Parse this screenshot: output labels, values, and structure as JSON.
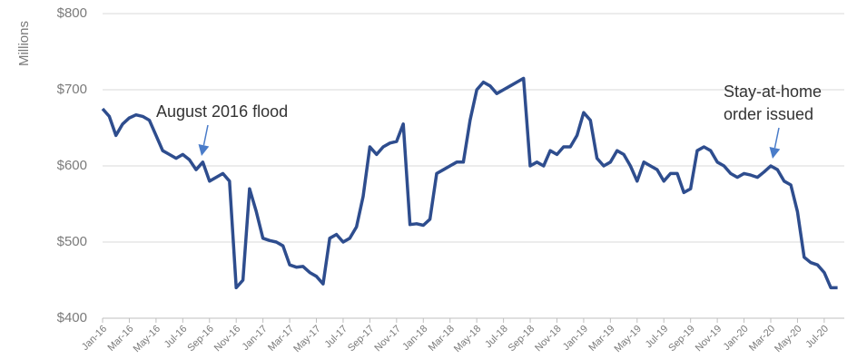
{
  "chart_data": {
    "type": "line",
    "y_label": "Millions",
    "categories": [
      "Jan-16",
      null,
      null,
      null,
      "Mar-16",
      null,
      null,
      null,
      "May-16",
      null,
      null,
      null,
      "Jul-16",
      null,
      null,
      null,
      "Sep-16",
      null,
      null,
      null,
      "Nov-16",
      null,
      null,
      null,
      "Jan-17",
      null,
      null,
      null,
      "Mar-17",
      null,
      null,
      null,
      "May-17",
      null,
      null,
      null,
      "Jul-17",
      null,
      null,
      null,
      "Sep-17",
      null,
      null,
      null,
      "Nov-17",
      null,
      null,
      null,
      "Jan-18",
      null,
      null,
      null,
      "Mar-18",
      null,
      null,
      null,
      "May-18",
      null,
      null,
      null,
      "Jul-18",
      null,
      null,
      null,
      "Sep-18",
      null,
      null,
      null,
      "Nov-18",
      null,
      null,
      null,
      "Jan-19",
      null,
      null,
      null,
      "Mar-19",
      null,
      null,
      null,
      "May-19",
      null,
      null,
      null,
      "Jul-19",
      null,
      null,
      null,
      "Sep-19",
      null,
      null,
      null,
      "Nov-19",
      null,
      null,
      null,
      "Jan-20",
      null,
      null,
      null,
      "Mar-20",
      null,
      null,
      null,
      "May-20",
      null,
      null,
      null,
      "Jul-20",
      null,
      null
    ],
    "series": [
      {
        "color": "#2e4d8e",
        "values": [
          675,
          665,
          640,
          655,
          663,
          667,
          665,
          660,
          640,
          620,
          615,
          610,
          615,
          608,
          595,
          605,
          580,
          585,
          590,
          580,
          440,
          450,
          570,
          540,
          505,
          502,
          500,
          495,
          470,
          467,
          468,
          460,
          455,
          445,
          505,
          510,
          500,
          505,
          520,
          560,
          625,
          615,
          625,
          630,
          632,
          655,
          523,
          524,
          522,
          530,
          590,
          595,
          600,
          605,
          605,
          660,
          700,
          710,
          705,
          695,
          700,
          705,
          710,
          715,
          600,
          605,
          600,
          620,
          615,
          625,
          625,
          640,
          670,
          660,
          610,
          600,
          605,
          620,
          615,
          600,
          580,
          605,
          600,
          595,
          580,
          590,
          590,
          565,
          570,
          620,
          625,
          620,
          605,
          600,
          590,
          585,
          590,
          588,
          585,
          592,
          600,
          595,
          580,
          575,
          540,
          480,
          473,
          470,
          460,
          440,
          440
        ]
      }
    ],
    "ylim": [
      400,
      800
    ],
    "yticks": [
      {
        "value": 400,
        "label": "$400"
      },
      {
        "value": 500,
        "label": "$500"
      },
      {
        "value": 600,
        "label": "$600"
      },
      {
        "value": 700,
        "label": "$700"
      },
      {
        "value": 800,
        "label": "$800"
      }
    ],
    "grid": true,
    "annotations": [
      {
        "text": [
          "August 2016 flood"
        ]
      },
      {
        "text": [
          "Stay-at-home",
          "order issued"
        ]
      }
    ]
  }
}
